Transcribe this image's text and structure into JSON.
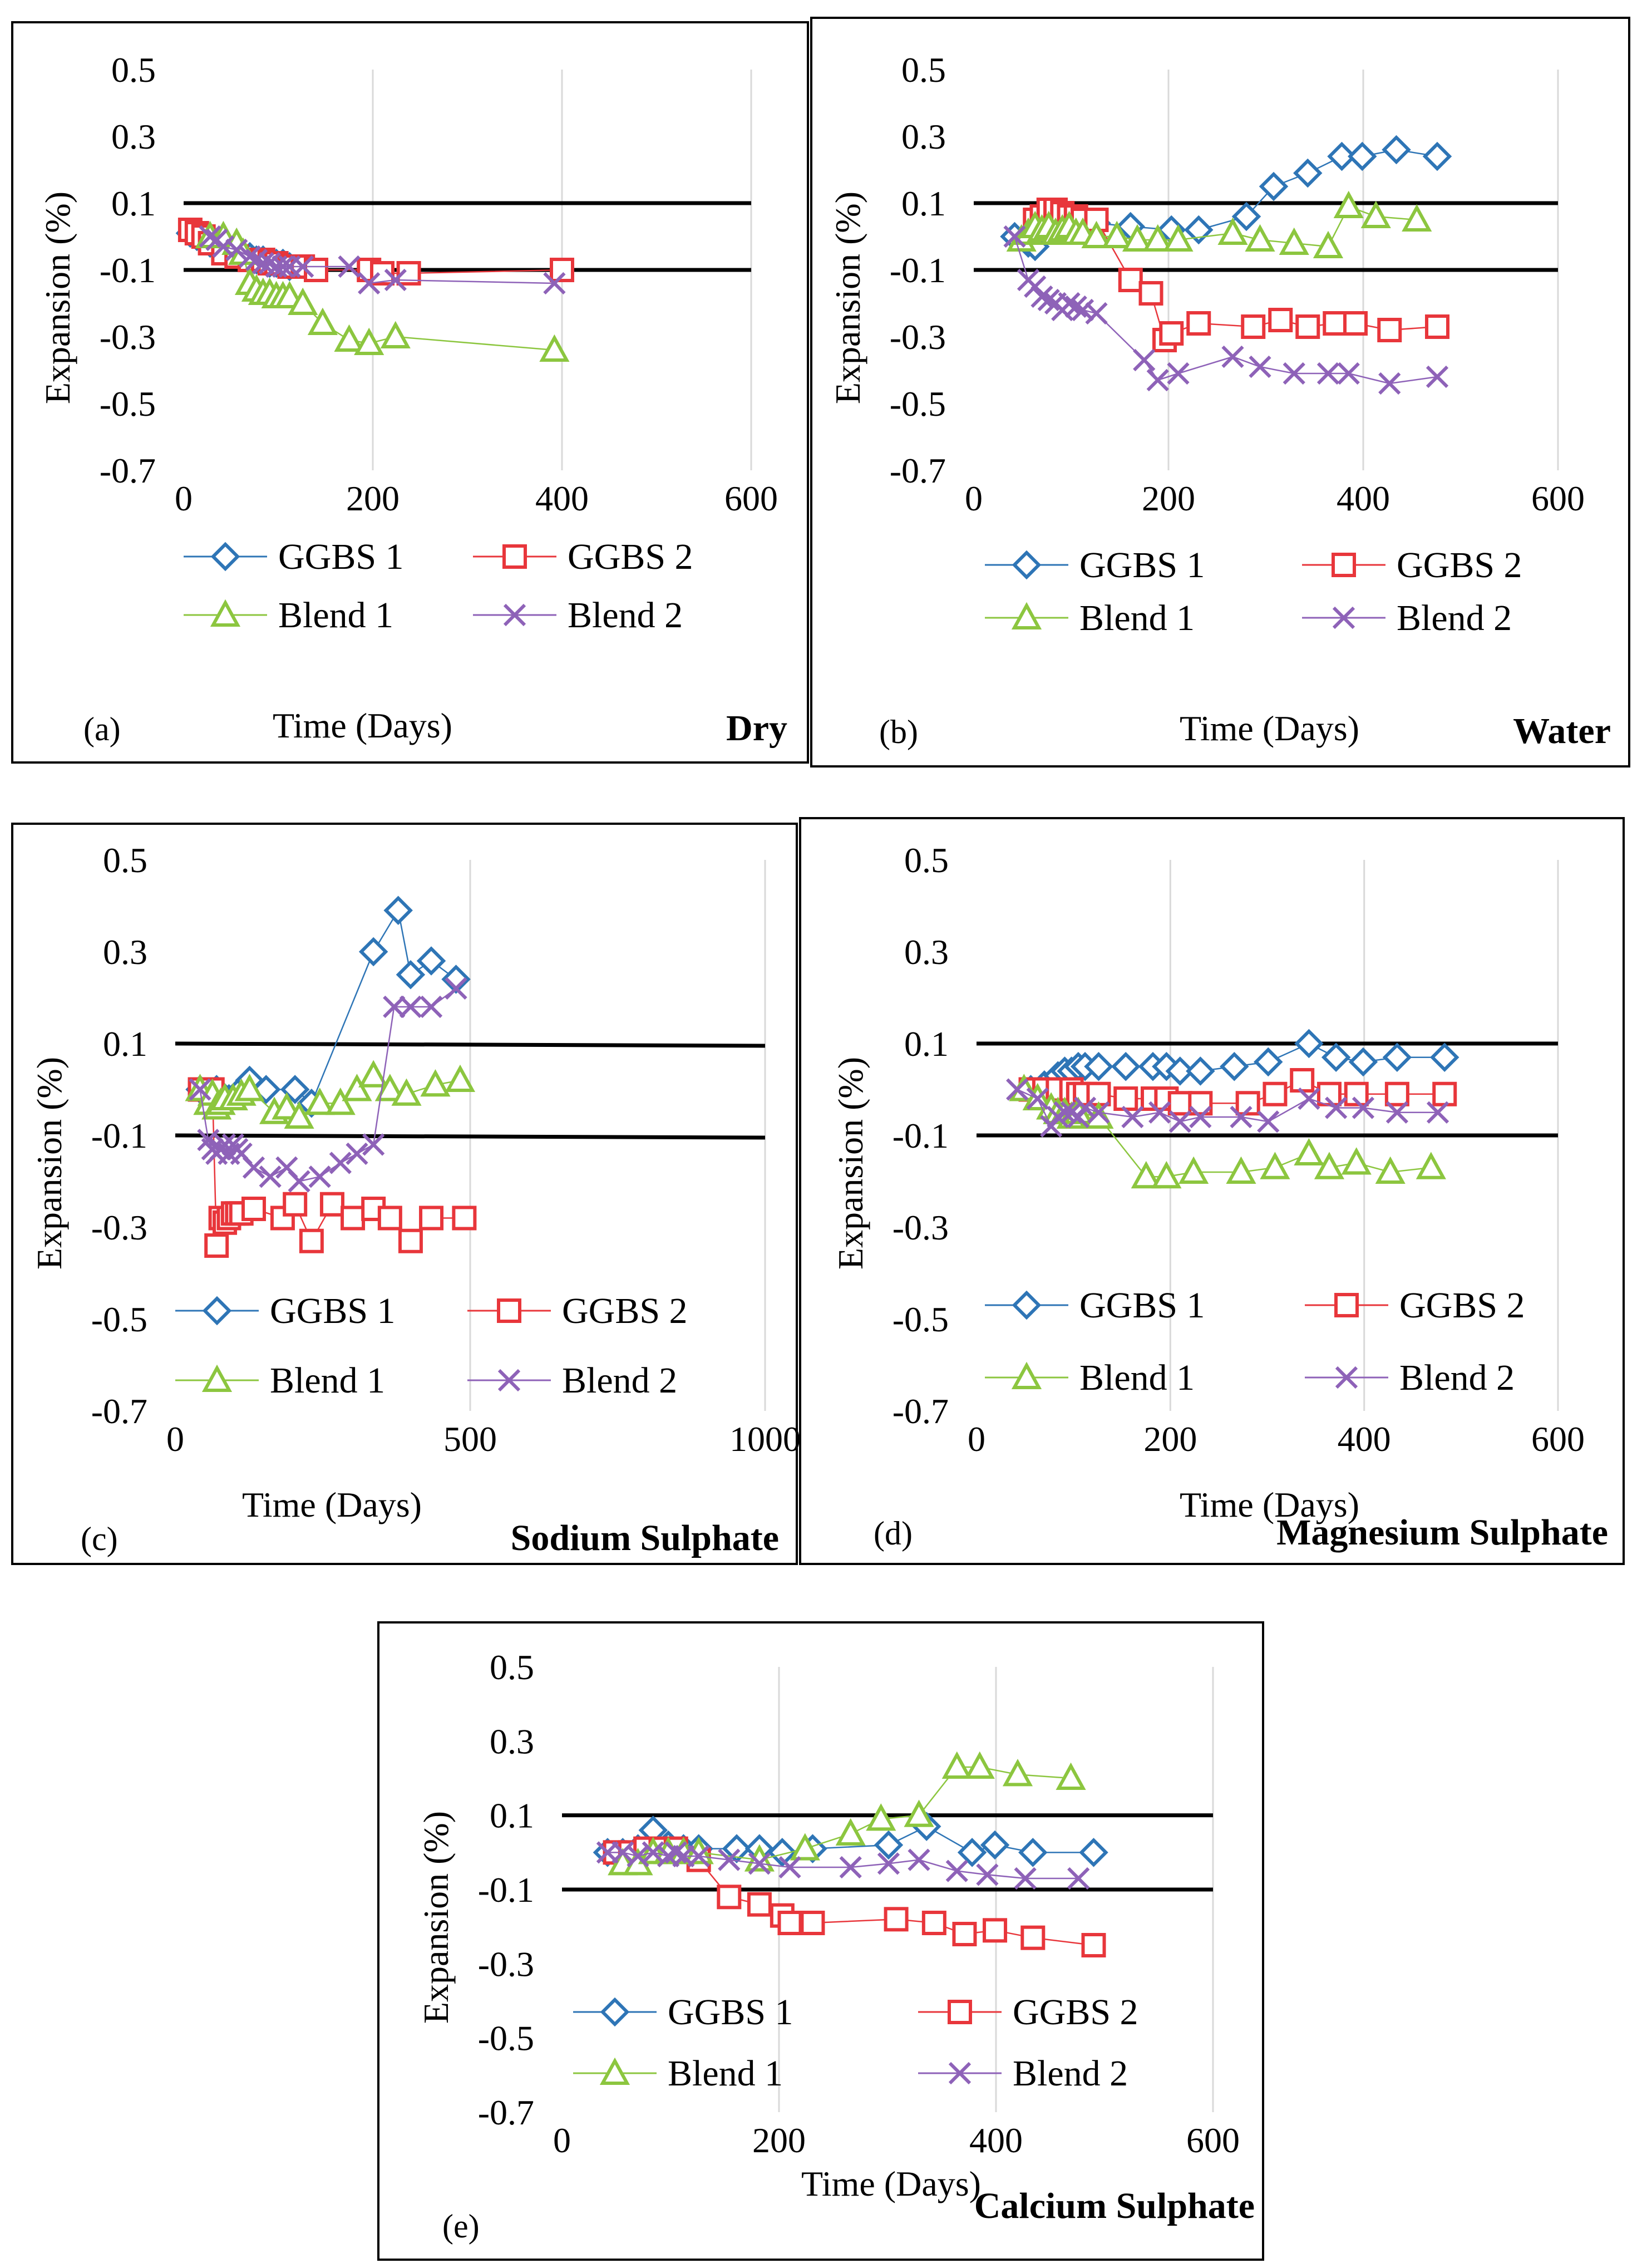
{
  "y_axis_label": "Expansion (%)",
  "x_axis_label": "Time (Days)",
  "series_styles": [
    {
      "name": "GGBS 1",
      "color": "#2e75b6",
      "marker": "diamond"
    },
    {
      "name": "GGBS 2",
      "color": "#e8363b",
      "marker": "square"
    },
    {
      "name": "Blend 1",
      "color": "#8cc63f",
      "marker": "triangle"
    },
    {
      "name": "Blend 2",
      "color": "#8e62b8",
      "marker": "cross"
    }
  ],
  "chart_data": [
    {
      "type": "scatter",
      "panel_label": "(a)",
      "condition": "Dry",
      "xlabel": "Time (Days)",
      "ylabel": "Expansion (%)",
      "xlim": [
        0,
        600
      ],
      "ylim": [
        -0.7,
        0.5
      ],
      "xticks": [
        "0",
        "200",
        "400",
        "600"
      ],
      "yticks": [
        "0.5",
        "0.3",
        "0.1",
        "-0.1",
        "-0.3",
        "-0.5",
        "-0.7"
      ],
      "limit_lines": [
        0.1,
        -0.1
      ],
      "grid": true,
      "legend": "bottom",
      "series": [
        {
          "name": "GGBS 1",
          "x": [
            7,
            14,
            21,
            28,
            35,
            42,
            56,
            63,
            70,
            77,
            84,
            91,
            98,
            105,
            112
          ],
          "y": [
            0.01,
            0.0,
            -0.01,
            -0.02,
            -0.03,
            -0.04,
            -0.05,
            -0.06,
            -0.06,
            -0.07,
            -0.07,
            -0.08,
            -0.08,
            -0.08,
            -0.09
          ]
        },
        {
          "name": "GGBS 2",
          "x": [
            7,
            14,
            21,
            28,
            42,
            56,
            70,
            84,
            91,
            98,
            112,
            126,
            140,
            196,
            210,
            238,
            400
          ],
          "y": [
            0.02,
            0.01,
            0.0,
            -0.02,
            -0.05,
            -0.06,
            -0.07,
            -0.07,
            -0.08,
            -0.08,
            -0.09,
            -0.09,
            -0.1,
            -0.1,
            -0.11,
            -0.11,
            -0.1
          ]
        },
        {
          "name": "Blend 1",
          "x": [
            28,
            42,
            56,
            63,
            70,
            77,
            84,
            91,
            98,
            105,
            112,
            126,
            147,
            175,
            196,
            224,
            392
          ],
          "y": [
            0.0,
            0.0,
            -0.02,
            -0.05,
            -0.14,
            -0.16,
            -0.17,
            -0.17,
            -0.18,
            -0.18,
            -0.18,
            -0.2,
            -0.26,
            -0.31,
            -0.32,
            -0.3,
            -0.34
          ]
        },
        {
          "name": "Blend 2",
          "x": [
            28,
            35,
            42,
            56,
            70,
            77,
            84,
            91,
            98,
            105,
            112,
            126,
            175,
            196,
            224,
            392
          ],
          "y": [
            0.0,
            -0.01,
            -0.03,
            -0.04,
            -0.06,
            -0.07,
            -0.08,
            -0.08,
            -0.09,
            -0.09,
            -0.09,
            -0.09,
            -0.09,
            -0.14,
            -0.13,
            -0.14
          ]
        }
      ]
    },
    {
      "type": "scatter",
      "panel_label": "(b)",
      "condition": "Water",
      "xlabel": "Time (Days)",
      "ylabel": "Expansion (%)",
      "xlim": [
        0,
        600
      ],
      "ylim": [
        -0.7,
        0.5
      ],
      "xticks": [
        "0",
        "200",
        "400",
        "600"
      ],
      "yticks": [
        "0.5",
        "0.3",
        "0.1",
        "-0.1",
        "-0.3",
        "-0.5",
        "-0.7"
      ],
      "limit_lines": [
        0.1,
        -0.1
      ],
      "grid": true,
      "legend": "bottom",
      "series": [
        {
          "name": "GGBS 1",
          "x": [
            42,
            56,
            63,
            70,
            77,
            84,
            91,
            98,
            105,
            112,
            126,
            161,
            203,
            231,
            280,
            308,
            343,
            378,
            399,
            434,
            476
          ],
          "y": [
            0.0,
            -0.02,
            -0.03,
            0.02,
            0.03,
            0.03,
            0.04,
            0.04,
            0.05,
            0.04,
            0.04,
            0.03,
            0.02,
            0.02,
            0.06,
            0.15,
            0.19,
            0.24,
            0.24,
            0.26,
            0.24
          ]
        },
        {
          "name": "GGBS 2",
          "x": [
            63,
            70,
            77,
            84,
            91,
            98,
            105,
            112,
            126,
            161,
            182,
            196,
            203,
            231,
            287,
            315,
            343,
            371,
            392,
            427,
            476
          ],
          "y": [
            0.05,
            0.06,
            0.08,
            0.08,
            0.07,
            0.06,
            0.06,
            0.05,
            0.05,
            -0.13,
            -0.17,
            -0.31,
            -0.29,
            -0.26,
            -0.27,
            -0.25,
            -0.27,
            -0.26,
            -0.26,
            -0.28,
            -0.27
          ]
        },
        {
          "name": "Blend 1",
          "x": [
            49,
            56,
            63,
            70,
            77,
            84,
            91,
            98,
            105,
            112,
            126,
            147,
            168,
            189,
            210,
            266,
            294,
            329,
            364,
            385,
            413,
            455
          ],
          "y": [
            -0.01,
            0.01,
            0.03,
            0.02,
            0.03,
            0.01,
            0.02,
            0.03,
            0.01,
            0.01,
            0.0,
            0.0,
            -0.01,
            -0.01,
            -0.01,
            0.01,
            -0.01,
            -0.02,
            -0.03,
            0.09,
            0.06,
            0.05
          ]
        },
        {
          "name": "Blend 2",
          "x": [
            42,
            56,
            63,
            70,
            77,
            84,
            91,
            98,
            105,
            112,
            126,
            175,
            189,
            210,
            266,
            294,
            329,
            364,
            385,
            427,
            476
          ],
          "y": [
            0.0,
            -0.13,
            -0.15,
            -0.18,
            -0.19,
            -0.2,
            -0.22,
            -0.2,
            -0.21,
            -0.22,
            -0.23,
            -0.37,
            -0.43,
            -0.41,
            -0.36,
            -0.39,
            -0.41,
            -0.41,
            -0.41,
            -0.44,
            -0.42
          ]
        }
      ]
    },
    {
      "type": "scatter",
      "panel_label": "(c)",
      "condition": "Sodium Sulphate",
      "xlabel": "Time (Days)",
      "ylabel": "Expansion (%)",
      "xlim": [
        0,
        1000
      ],
      "ylim": [
        -0.7,
        0.5
      ],
      "xticks": [
        "0",
        "500",
        "1000"
      ],
      "yticks": [
        "0.5",
        "0.3",
        "0.1",
        "-0.1",
        "-0.3",
        "-0.5",
        "-0.7"
      ],
      "limit_lines": [
        0.1,
        -0.1
      ],
      "grid": true,
      "legend": "bottom",
      "series": [
        {
          "name": "GGBS 1",
          "x": [
            42,
            70,
            91,
            112,
            126,
            154,
            203,
            231,
            336,
            378,
            399,
            434,
            476
          ],
          "y": [
            0.0,
            0.0,
            -0.02,
            0.0,
            0.02,
            0.0,
            0.0,
            -0.03,
            0.3,
            0.39,
            0.25,
            0.28,
            0.24
          ]
        },
        {
          "name": "GGBS 2",
          "x": [
            42,
            56,
            63,
            70,
            77,
            84,
            91,
            98,
            105,
            112,
            133,
            182,
            203,
            231,
            266,
            301,
            336,
            364,
            399,
            434,
            490
          ],
          "y": [
            0.0,
            0.0,
            0.0,
            -0.34,
            -0.28,
            -0.29,
            -0.28,
            -0.27,
            -0.27,
            -0.27,
            -0.26,
            -0.28,
            -0.25,
            -0.33,
            -0.25,
            -0.28,
            -0.26,
            -0.28,
            -0.33,
            -0.28,
            -0.28
          ]
        },
        {
          "name": "Blend 1",
          "x": [
            42,
            56,
            63,
            70,
            77,
            84,
            98,
            112,
            126,
            168,
            189,
            210,
            245,
            280,
            308,
            336,
            364,
            392,
            441,
            483
          ],
          "y": [
            0.0,
            -0.03,
            -0.01,
            -0.04,
            -0.03,
            -0.02,
            -0.02,
            -0.01,
            0.0,
            -0.05,
            -0.04,
            -0.06,
            -0.03,
            -0.03,
            0.0,
            0.03,
            0.0,
            -0.01,
            0.01,
            0.02
          ]
        },
        {
          "name": "Blend 2",
          "x": [
            42,
            56,
            63,
            70,
            77,
            84,
            91,
            98,
            105,
            112,
            133,
            161,
            189,
            210,
            245,
            280,
            308,
            336,
            371,
            399,
            434,
            476
          ],
          "y": [
            0.0,
            -0.11,
            -0.13,
            -0.14,
            -0.13,
            -0.12,
            -0.14,
            -0.12,
            -0.13,
            -0.14,
            -0.17,
            -0.19,
            -0.17,
            -0.2,
            -0.19,
            -0.16,
            -0.14,
            -0.12,
            0.18,
            0.18,
            0.18,
            0.22
          ]
        }
      ]
    },
    {
      "type": "scatter",
      "panel_label": "(d)",
      "condition": "Magnesium Sulphate",
      "xlabel": "Time (Days)",
      "ylabel": "Expansion (%)",
      "xlim": [
        0,
        600
      ],
      "ylim": [
        -0.7,
        0.5
      ],
      "xticks": [
        "0",
        "200",
        "400",
        "600"
      ],
      "yticks": [
        "0.5",
        "0.3",
        "0.1",
        "-0.1",
        "-0.3",
        "-0.5",
        "-0.7"
      ],
      "limit_lines": [
        0.1,
        -0.1
      ],
      "grid": true,
      "legend": "bottom",
      "series": [
        {
          "name": "GGBS 1",
          "x": [
            56,
            70,
            84,
            91,
            98,
            105,
            112,
            126,
            154,
            182,
            196,
            210,
            231,
            266,
            301,
            343,
            371,
            399,
            434,
            483
          ],
          "y": [
            0.0,
            0.01,
            0.03,
            0.04,
            0.04,
            0.05,
            0.05,
            0.05,
            0.05,
            0.05,
            0.05,
            0.04,
            0.04,
            0.05,
            0.06,
            0.1,
            0.07,
            0.06,
            0.07,
            0.07
          ]
        },
        {
          "name": "GGBS 2",
          "x": [
            56,
            70,
            84,
            98,
            105,
            112,
            126,
            154,
            182,
            196,
            210,
            231,
            280,
            308,
            336,
            364,
            392,
            434,
            483
          ],
          "y": [
            0.0,
            0.0,
            0.0,
            0.0,
            -0.01,
            -0.01,
            -0.01,
            -0.02,
            -0.02,
            -0.02,
            -0.03,
            -0.03,
            -0.03,
            -0.01,
            0.02,
            -0.01,
            -0.01,
            -0.01,
            -0.01
          ]
        },
        {
          "name": "Blend 1",
          "x": [
            49,
            63,
            77,
            84,
            91,
            98,
            105,
            126,
            175,
            196,
            224,
            273,
            308,
            343,
            364,
            392,
            427,
            469
          ],
          "y": [
            0.0,
            -0.02,
            -0.04,
            -0.05,
            -0.05,
            -0.06,
            -0.05,
            -0.06,
            -0.19,
            -0.19,
            -0.18,
            -0.18,
            -0.17,
            -0.14,
            -0.17,
            -0.16,
            -0.18,
            -0.17
          ]
        },
        {
          "name": "Blend 2",
          "x": [
            42,
            63,
            77,
            84,
            91,
            98,
            105,
            112,
            126,
            161,
            189,
            210,
            231,
            273,
            301,
            343,
            371,
            399,
            434,
            476
          ],
          "y": [
            0.0,
            -0.02,
            -0.08,
            -0.06,
            -0.05,
            -0.05,
            -0.06,
            -0.04,
            -0.05,
            -0.06,
            -0.05,
            -0.07,
            -0.06,
            -0.06,
            -0.07,
            -0.02,
            -0.04,
            -0.04,
            -0.05,
            -0.05
          ]
        }
      ]
    },
    {
      "type": "scatter",
      "panel_label": "(e)",
      "condition": "Calcium Sulphate",
      "xlabel": "Time (Days)",
      "ylabel": "Expansion (%)",
      "xlim": [
        0,
        600
      ],
      "ylim": [
        -0.7,
        0.5
      ],
      "xticks": [
        "0",
        "200",
        "400",
        "600"
      ],
      "yticks": [
        "0.5",
        "0.3",
        "0.1",
        "-0.1",
        "-0.3",
        "-0.5",
        "-0.7"
      ],
      "limit_lines": [
        0.1,
        -0.1
      ],
      "grid": true,
      "legend": "bottom",
      "series": [
        {
          "name": "GGBS 1",
          "x": [
            42,
            56,
            70,
            84,
            98,
            112,
            126,
            161,
            182,
            203,
            231,
            301,
            336,
            378,
            399,
            434,
            490
          ],
          "y": [
            0.0,
            0.0,
            0.01,
            0.06,
            0.02,
            0.01,
            0.01,
            0.01,
            0.01,
            0.0,
            0.01,
            0.02,
            0.07,
            0.0,
            0.02,
            0.0,
            0.0
          ]
        },
        {
          "name": "GGBS 2",
          "x": [
            49,
            63,
            77,
            91,
            105,
            126,
            154,
            182,
            203,
            210,
            231,
            308,
            343,
            371,
            399,
            434,
            490
          ],
          "y": [
            0.0,
            0.0,
            0.01,
            0.01,
            0.01,
            -0.02,
            -0.12,
            -0.14,
            -0.17,
            -0.19,
            -0.19,
            -0.18,
            -0.19,
            -0.22,
            -0.21,
            -0.23,
            -0.25
          ]
        },
        {
          "name": "Blend 1",
          "x": [
            56,
            70,
            84,
            98,
            112,
            126,
            182,
            224,
            266,
            294,
            329,
            364,
            385,
            420,
            469
          ],
          "y": [
            -0.03,
            -0.03,
            0.0,
            0.0,
            0.0,
            0.0,
            -0.02,
            0.01,
            0.05,
            0.09,
            0.1,
            0.23,
            0.23,
            0.21,
            0.2
          ]
        },
        {
          "name": "Blend 2",
          "x": [
            42,
            56,
            70,
            84,
            98,
            105,
            112,
            126,
            154,
            182,
            210,
            266,
            301,
            329,
            364,
            392,
            427,
            476
          ],
          "y": [
            0.0,
            0.0,
            -0.01,
            0.0,
            -0.01,
            0.0,
            -0.01,
            -0.01,
            -0.02,
            -0.03,
            -0.04,
            -0.04,
            -0.03,
            -0.02,
            -0.05,
            -0.06,
            -0.07,
            -0.07
          ]
        }
      ]
    }
  ]
}
